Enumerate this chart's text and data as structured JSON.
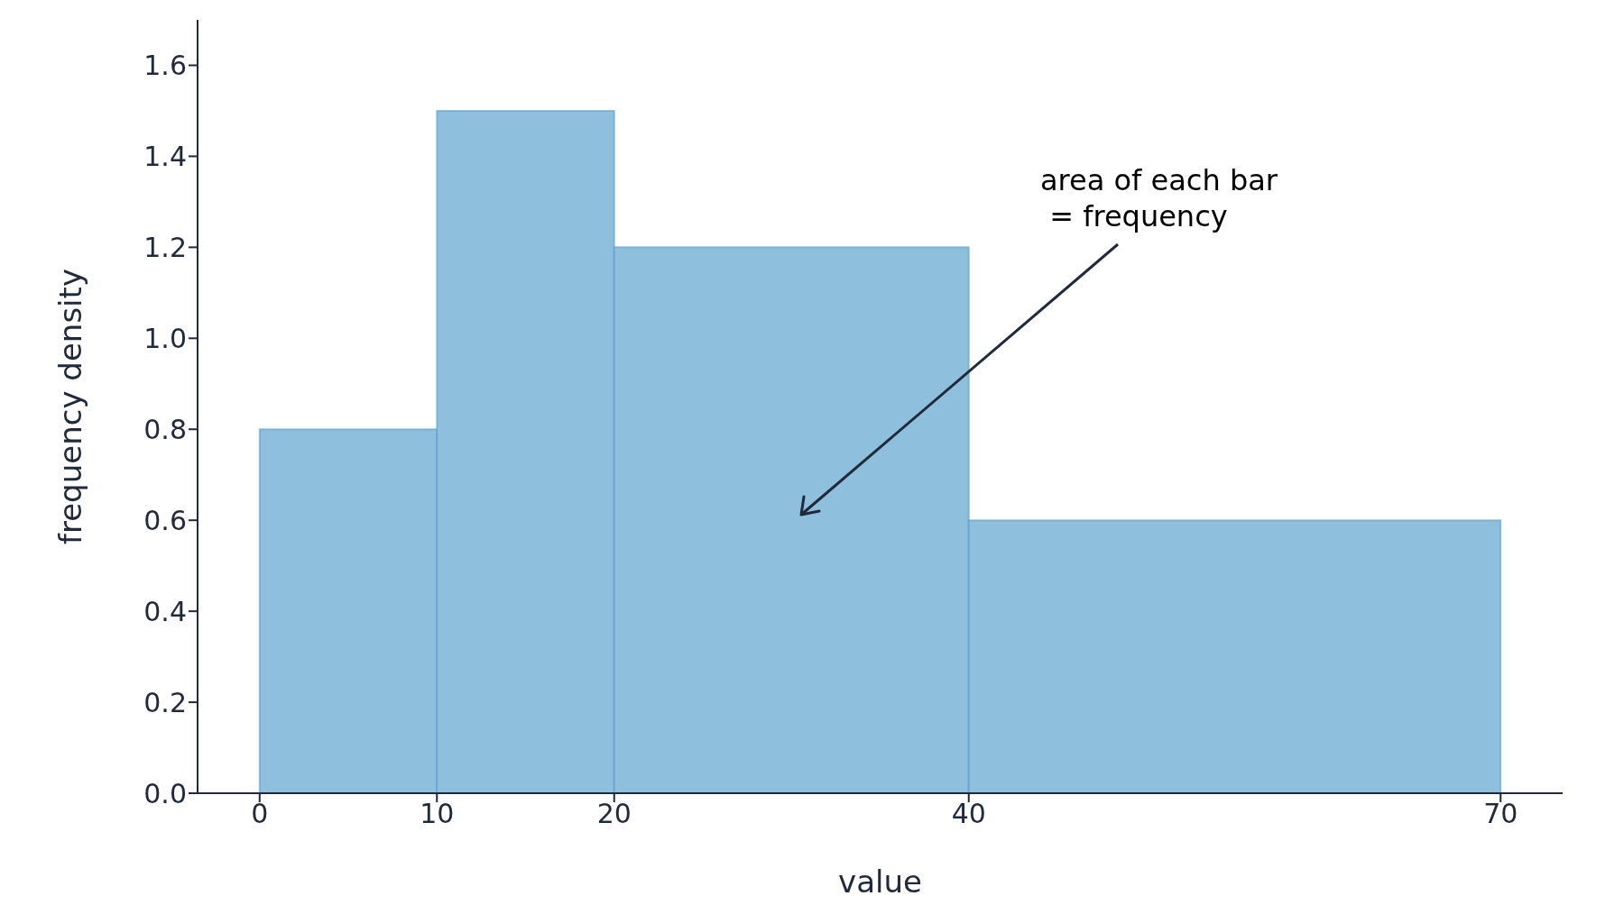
{
  "chart_data": {
    "type": "histogram",
    "xlabel": "value",
    "ylabel": "frequency density",
    "bins": [
      0,
      10,
      20,
      40,
      70
    ],
    "values": [
      0.8,
      1.5,
      1.2,
      0.6
    ],
    "color": "#8ebfdc",
    "xlim": [
      -3.5,
      73.5
    ],
    "xticks": [
      0,
      10,
      20,
      40,
      70
    ],
    "ylim": [
      0,
      1.7
    ],
    "yticks": [
      {
        "value": 0,
        "label": "0.0"
      },
      0.2,
      0.4,
      0.6,
      0.8,
      {
        "value": 1,
        "label": "1.0"
      },
      1.2,
      1.4,
      1.6
    ],
    "annotations": [
      "area of each bar\n = frequency"
    ]
  }
}
